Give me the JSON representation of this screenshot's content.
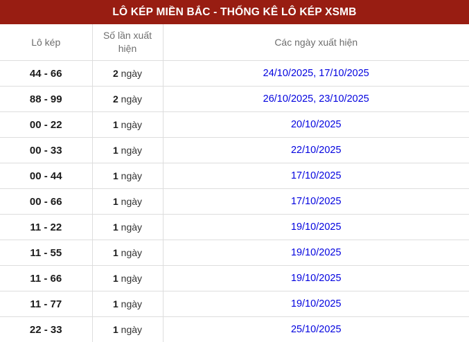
{
  "title_bar": {
    "title": "LÔ KÉP MIỀN BẮC - THỐNG KÊ LÔ KÉP XSMB"
  },
  "colors": {
    "header_bg": "#981d12",
    "header_text": "#ffffff",
    "column_header_text": "#6d6d6d",
    "row_border": "#dddddd",
    "pair_text": "#1a1a1a",
    "date_link": "#0202df"
  },
  "table": {
    "columns": [
      {
        "label": "Lô kép"
      },
      {
        "label": "Số lần xuất hiện"
      },
      {
        "label": "Các ngày xuất hiện"
      }
    ],
    "unit_label": "ngày",
    "rows": [
      {
        "pair": "44 - 66",
        "count": "2",
        "dates": [
          "24/10/2025",
          "17/10/2025"
        ]
      },
      {
        "pair": "88 - 99",
        "count": "2",
        "dates": [
          "26/10/2025",
          "23/10/2025"
        ]
      },
      {
        "pair": "00 - 22",
        "count": "1",
        "dates": [
          "20/10/2025"
        ]
      },
      {
        "pair": "00 - 33",
        "count": "1",
        "dates": [
          "22/10/2025"
        ]
      },
      {
        "pair": "00 - 44",
        "count": "1",
        "dates": [
          "17/10/2025"
        ]
      },
      {
        "pair": "00 - 66",
        "count": "1",
        "dates": [
          "17/10/2025"
        ]
      },
      {
        "pair": "11 - 22",
        "count": "1",
        "dates": [
          "19/10/2025"
        ]
      },
      {
        "pair": "11 - 55",
        "count": "1",
        "dates": [
          "19/10/2025"
        ]
      },
      {
        "pair": "11 - 66",
        "count": "1",
        "dates": [
          "19/10/2025"
        ]
      },
      {
        "pair": "11 - 77",
        "count": "1",
        "dates": [
          "19/10/2025"
        ]
      },
      {
        "pair": "22 - 33",
        "count": "1",
        "dates": [
          "25/10/2025"
        ]
      }
    ]
  }
}
